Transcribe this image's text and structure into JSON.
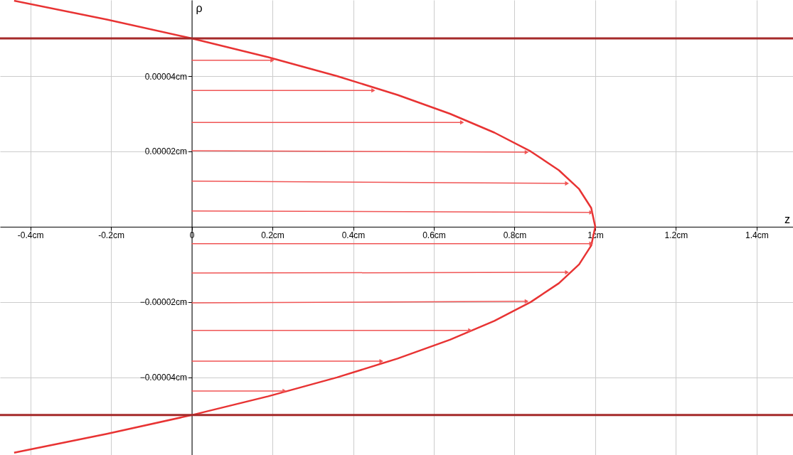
{
  "chart_data": {
    "type": "line",
    "xlabel": "z",
    "ylabel": "ρ",
    "xlim": [
      -0.475,
      1.49
    ],
    "ylim": [
      -6.06e-05,
      6.02e-05
    ],
    "xticks": [
      {
        "value": -0.4,
        "label": "-0.4cm"
      },
      {
        "value": -0.2,
        "label": "-0.2cm"
      },
      {
        "value": 0,
        "label": "0"
      },
      {
        "value": 0.2,
        "label": "0.2cm"
      },
      {
        "value": 0.4,
        "label": "0.4cm"
      },
      {
        "value": 0.6,
        "label": "0.6cm"
      },
      {
        "value": 0.8,
        "label": "0.8cm"
      },
      {
        "value": 1,
        "label": "1cm"
      },
      {
        "value": 1.2,
        "label": "1.2cm"
      },
      {
        "value": 1.4,
        "label": "1.4cm"
      }
    ],
    "yticks": [
      {
        "value": -4e-05,
        "label": "−0.00004cm"
      },
      {
        "value": -2e-05,
        "label": "−0.00002cm"
      },
      {
        "value": 2e-05,
        "label": "0.00002cm"
      },
      {
        "value": 4e-05,
        "label": "0.00004cm"
      }
    ],
    "grid": true,
    "ref_lines": [
      {
        "axis": "y",
        "value": 5e-05,
        "color": "#a52a2a"
      },
      {
        "axis": "y",
        "value": -5e-05,
        "color": "#a52a2a"
      }
    ],
    "series": [
      {
        "color": "#e83333",
        "x": [
          -0.44,
          -0.21,
          0,
          0.19,
          0.36,
          0.51,
          0.64,
          0.75,
          0.84,
          0.91,
          0.96,
          0.99,
          1,
          0.99,
          0.96,
          0.91,
          0.84,
          0.75,
          0.64,
          0.51,
          0.36,
          0.19,
          0,
          -0.21,
          -0.44
        ],
        "values": [
          6e-05,
          5.5e-05,
          5e-05,
          4.5e-05,
          4e-05,
          3.5e-05,
          3e-05,
          2.5e-05,
          2e-05,
          1.5e-05,
          1e-05,
          5e-06,
          0,
          -5e-06,
          -1e-05,
          -1.5e-05,
          -2e-05,
          -2.5e-05,
          -3e-05,
          -3.5e-05,
          -4e-05,
          -4.5e-05,
          -5e-05,
          -5.5e-05,
          -6e-05
        ]
      },
      {
        "type": "line",
        "marker": "triangle",
        "color": "#f05555",
        "x": [
          0,
          0.2
        ],
        "values": [
          4.42e-05,
          4.42e-05
        ]
      },
      {
        "type": "line",
        "marker": "triangle",
        "color": "#f05555",
        "x": [
          0,
          0.45
        ],
        "values": [
          3.62e-05,
          3.62e-05
        ]
      },
      {
        "type": "line",
        "marker": "triangle",
        "color": "#f05555",
        "x": [
          0,
          0.67
        ],
        "values": [
          2.77e-05,
          2.77e-05
        ]
      },
      {
        "type": "line",
        "marker": "triangle",
        "color": "#f05555",
        "x": [
          0,
          0.83
        ],
        "values": [
          2.02e-05,
          1.98e-05
        ]
      },
      {
        "type": "line",
        "marker": "triangle",
        "color": "#f05555",
        "x": [
          0,
          0.93
        ],
        "values": [
          1.21e-05,
          1.15e-05
        ]
      },
      {
        "type": "line",
        "marker": "triangle",
        "color": "#f05555",
        "x": [
          0,
          0.99
        ],
        "values": [
          4.2e-06,
          3.8e-06
        ]
      },
      {
        "type": "line",
        "marker": "triangle",
        "color": "#f05555",
        "x": [
          0,
          0.99
        ],
        "values": [
          -4.5e-06,
          -4.5e-06
        ]
      },
      {
        "type": "line",
        "marker": "triangle",
        "color": "#f05555",
        "x": [
          0,
          0.93
        ],
        "values": [
          -1.23e-05,
          -1.21e-05
        ]
      },
      {
        "type": "line",
        "marker": "triangle",
        "color": "#f05555",
        "x": [
          0,
          0.83
        ],
        "values": [
          -2.02e-05,
          -1.98e-05
        ]
      },
      {
        "type": "line",
        "marker": "triangle",
        "color": "#f05555",
        "x": [
          0,
          0.69
        ],
        "values": [
          -2.75e-05,
          -2.75e-05
        ]
      },
      {
        "type": "line",
        "marker": "triangle",
        "color": "#f05555",
        "x": [
          0,
          0.47
        ],
        "values": [
          -3.57e-05,
          -3.57e-05
        ]
      },
      {
        "type": "line",
        "marker": "triangle",
        "color": "#f05555",
        "x": [
          0,
          0.23
        ],
        "values": [
          -4.36e-05,
          -4.36e-05
        ]
      }
    ]
  }
}
